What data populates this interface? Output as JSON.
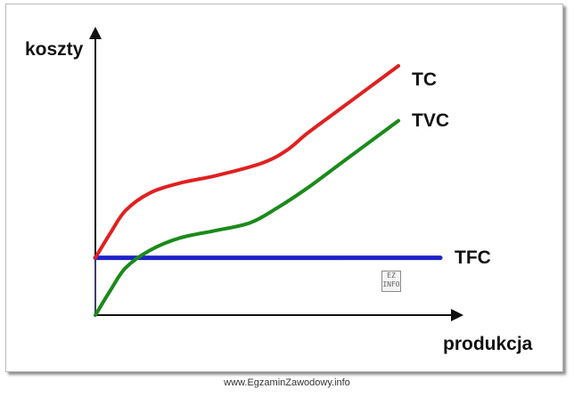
{
  "chart_data": {
    "type": "line",
    "ylabel": "koszty",
    "xlabel": "produkcja",
    "grid": false,
    "legend": "inline labels at right end of each curve",
    "xlim": [
      0,
      10
    ],
    "ylim": [
      0,
      10
    ],
    "series": [
      {
        "name": "TC",
        "color": "#e02020",
        "x": [
          0,
          0.5,
          1,
          1.8,
          2.8,
          4,
          5.5,
          6.3,
          7,
          8,
          9,
          10
        ],
        "y": [
          2.3,
          3.3,
          4.2,
          4.9,
          5.3,
          5.6,
          6.1,
          6.6,
          7.3,
          8.2,
          9.1,
          10.0
        ]
      },
      {
        "name": "TVC",
        "color": "#1a8a1a",
        "x": [
          0,
          0.5,
          1,
          1.8,
          2.8,
          4,
          5.1,
          6,
          7,
          8,
          9,
          10
        ],
        "y": [
          0,
          1.0,
          1.9,
          2.6,
          3.1,
          3.4,
          3.7,
          4.3,
          5.1,
          6.0,
          6.9,
          7.8
        ]
      },
      {
        "name": "TFC",
        "color": "#1f22c8",
        "x": [
          0,
          10
        ],
        "y": [
          2.3,
          2.3
        ]
      }
    ]
  },
  "logo_text": "EZ INFO",
  "footer_text": "www.EgzaminZawodowy.info"
}
